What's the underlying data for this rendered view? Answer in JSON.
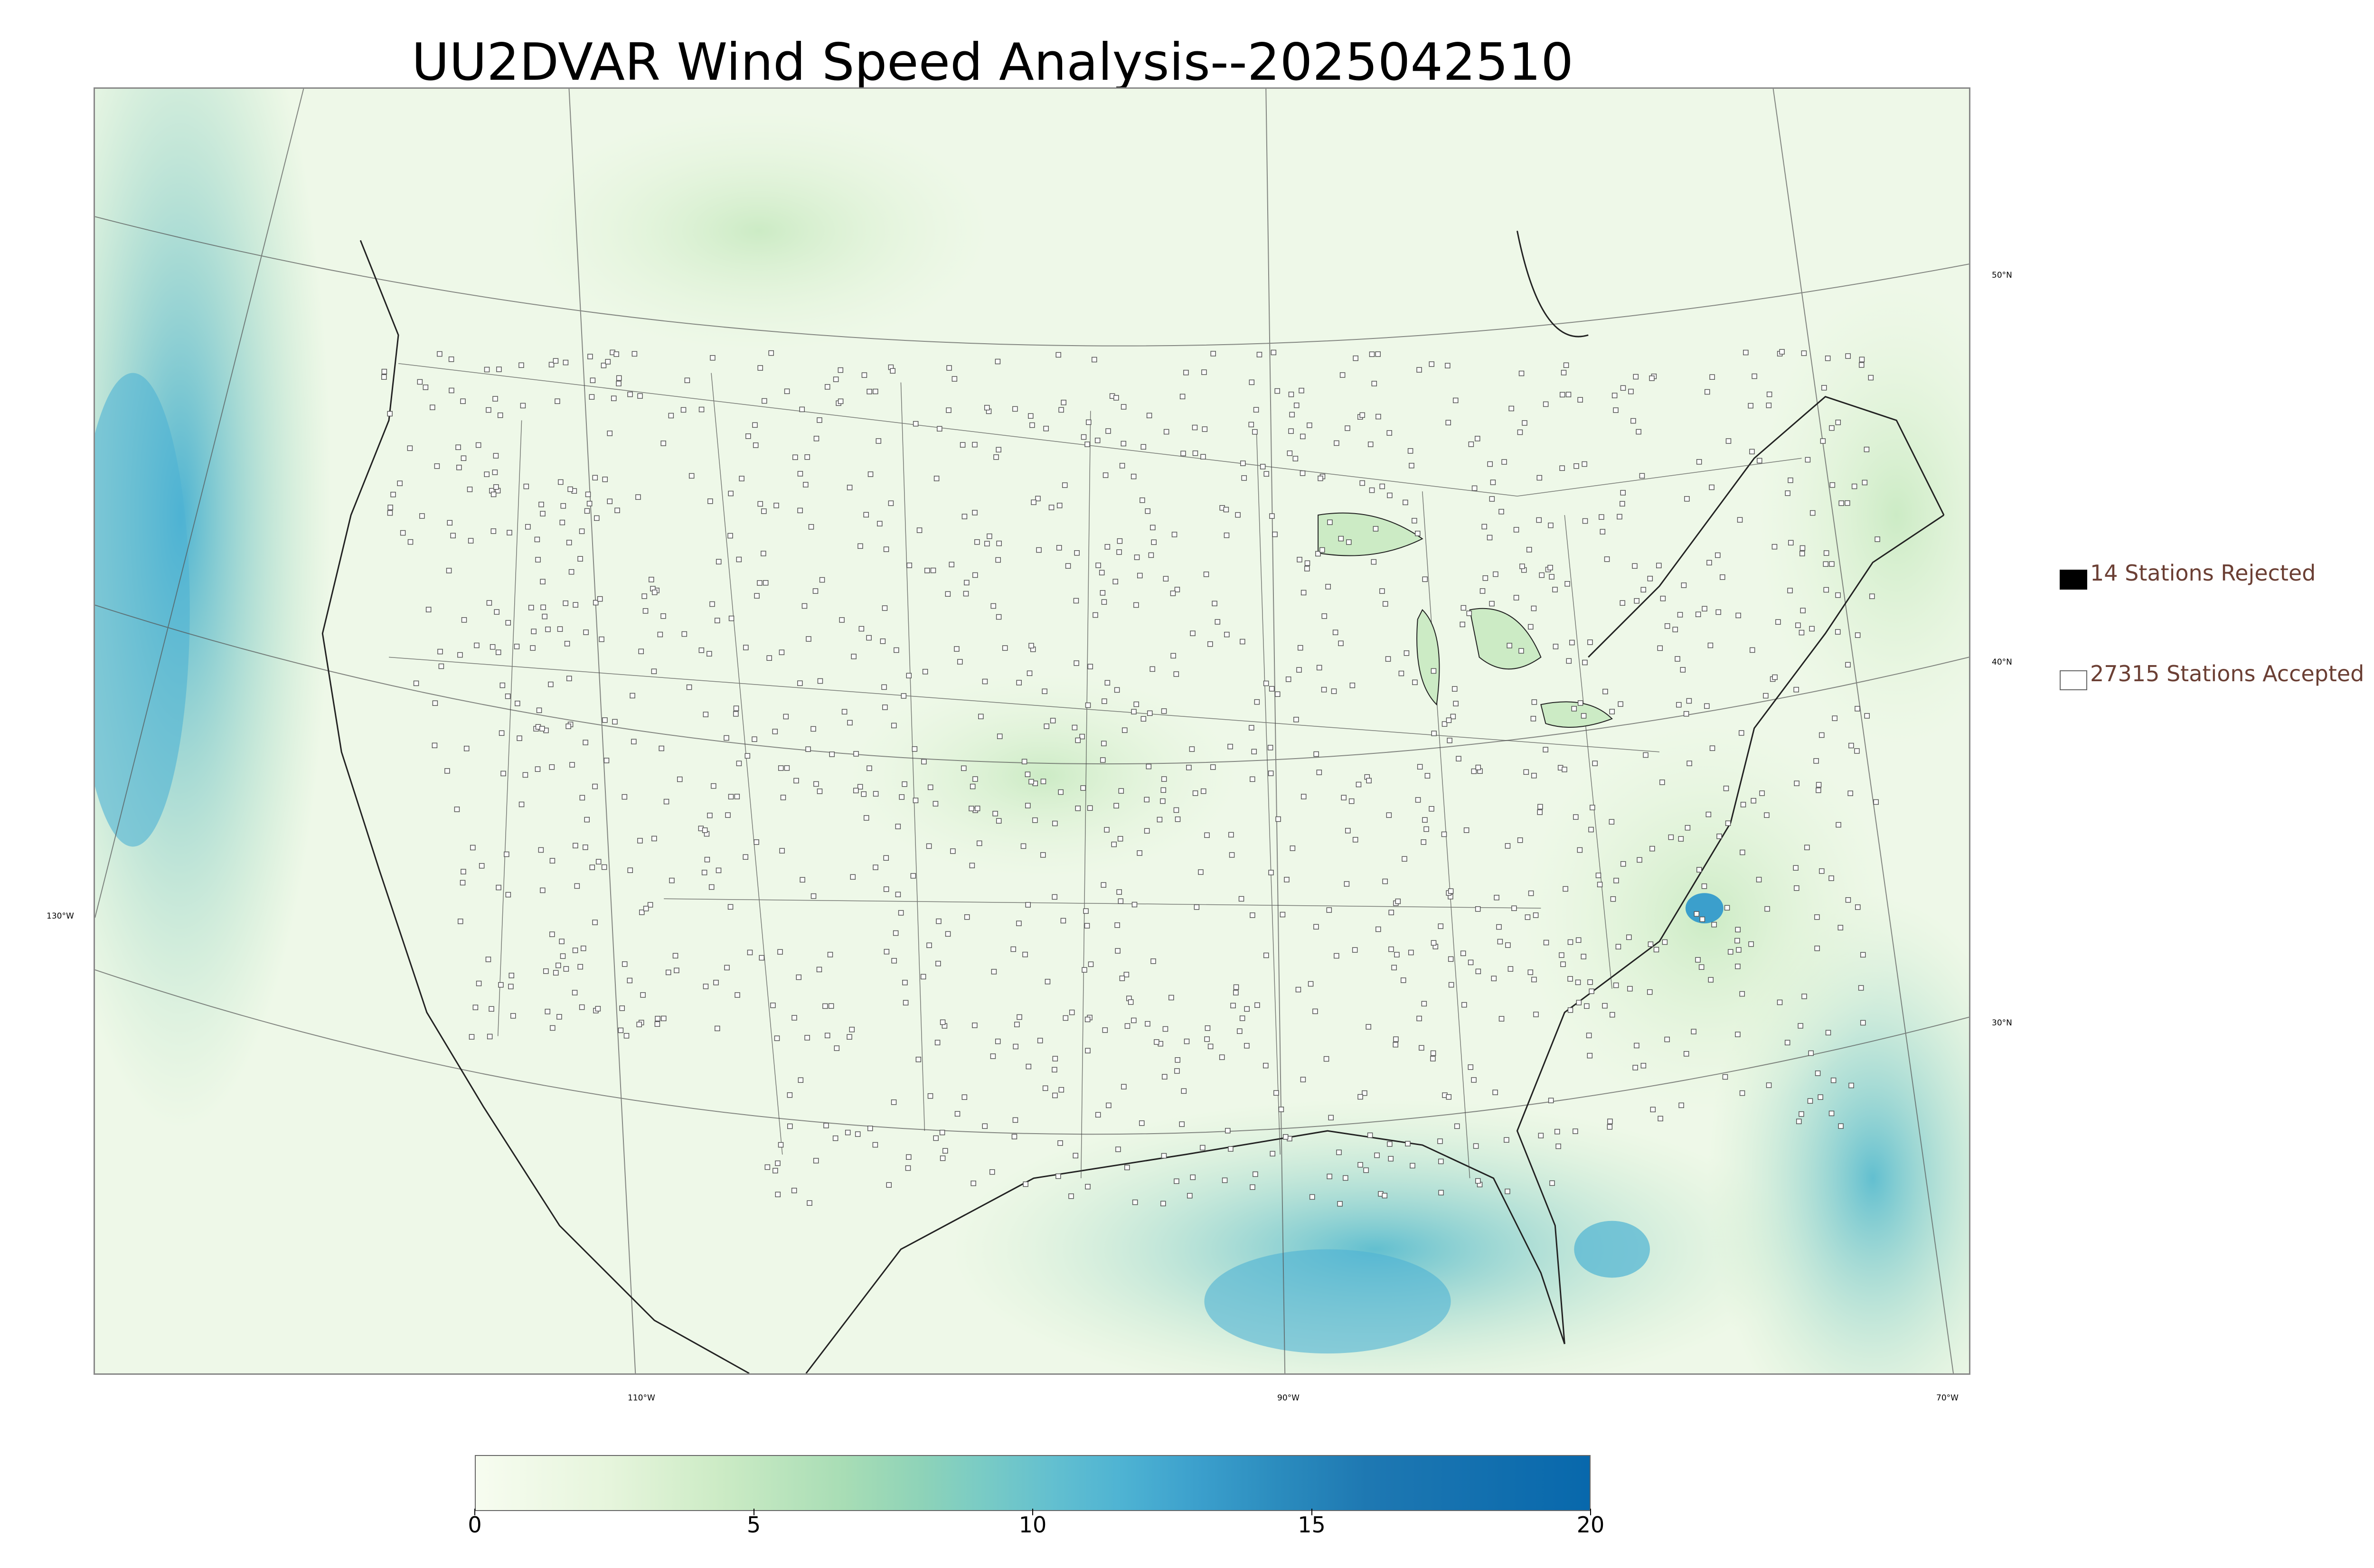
{
  "title": "UU2DVAR Wind Speed Analysis--2025042510",
  "map": {
    "lat_labels": [
      "50°N",
      "40°N",
      "30°N"
    ],
    "lon_labels": [
      "130°W",
      "110°W",
      "90°W",
      "70°W"
    ]
  },
  "legend": {
    "rejected": {
      "count_label": "14 Stations Rejected",
      "color": "#000000"
    },
    "accepted": {
      "count_label": "27315 Stations Accepted",
      "color": "#ffffff"
    }
  },
  "colorbar": {
    "min": 0,
    "max": 20,
    "tick_labels": [
      "0",
      "5",
      "10",
      "15",
      "20"
    ],
    "colormap": "GnBu"
  }
}
